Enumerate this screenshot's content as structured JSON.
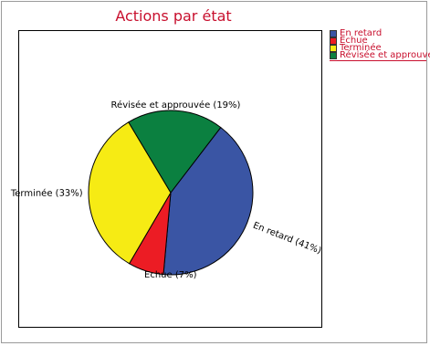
{
  "chart_data": {
    "type": "pie",
    "title": "Actions par état",
    "slices": [
      {
        "label": "En retard",
        "value": 41,
        "color": "#3a55a4",
        "slice_label": "En retard (41%)"
      },
      {
        "label": "Echue",
        "value": 7,
        "color": "#ec1c24",
        "slice_label": "Echue (7%)"
      },
      {
        "label": "Terminée",
        "value": 33,
        "color": "#f6eb14",
        "slice_label": "Terminée (33%)"
      },
      {
        "label": "Révisée et approuvée",
        "value": 19,
        "color": "#0b8040",
        "slice_label": "Révisée et approuvée (19%)"
      }
    ],
    "legend_position": "top-right",
    "title_color": "#c8102e",
    "legend_text_color": "#c8102e"
  }
}
